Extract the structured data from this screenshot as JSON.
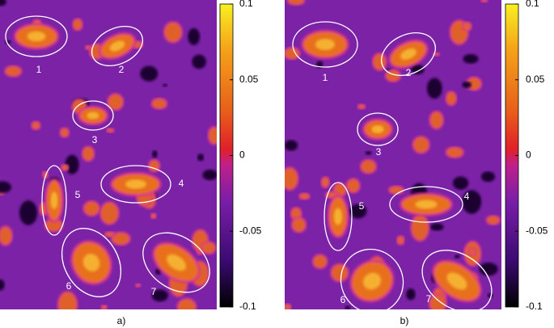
{
  "chart_data": [
    {
      "type": "heatmap",
      "panel_label": "a)",
      "clim": [
        -0.1,
        0.1
      ],
      "cticks": [
        0.1,
        0.05,
        0,
        -0.05,
        -0.1
      ],
      "annotations": [
        "1",
        "2",
        "3",
        "4",
        "5",
        "6",
        "7"
      ]
    },
    {
      "type": "heatmap",
      "panel_label": "b)",
      "clim": [
        -0.1,
        0.1
      ],
      "cticks": [
        0.1,
        0.05,
        0,
        -0.05,
        -0.1
      ],
      "annotations": [
        "1",
        "2",
        "3",
        "4",
        "5",
        "6",
        "7"
      ]
    }
  ]
}
